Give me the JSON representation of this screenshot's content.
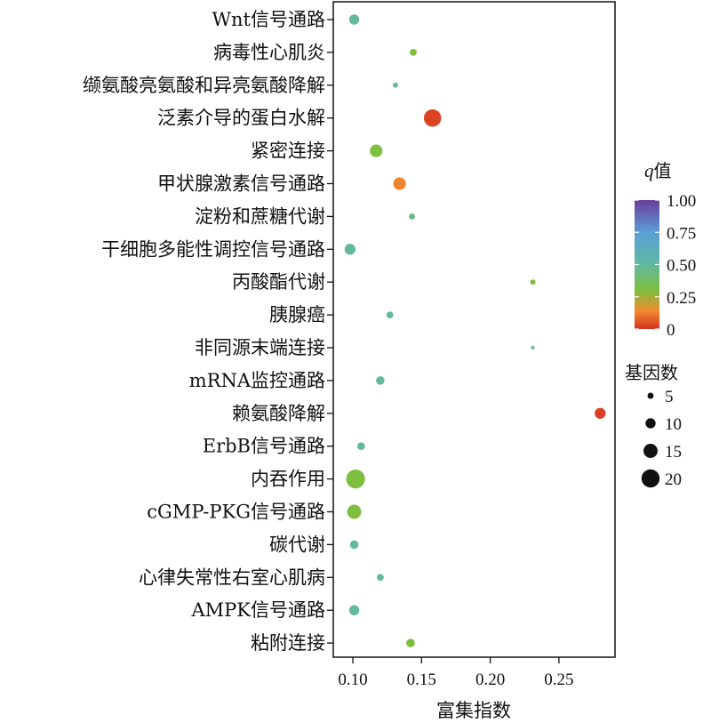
{
  "chart_data": {
    "type": "scatter",
    "xlabel": "富集指数",
    "xlim": [
      0.085,
      0.295
    ],
    "xticks": [
      0.1,
      0.15,
      0.2,
      0.25
    ],
    "xtick_labels": [
      "0.10",
      "0.15",
      "0.20",
      "0.25"
    ],
    "points": [
      {
        "term": "Wnt信号通路",
        "x": 0.101,
        "q": 0.5,
        "genes": 10
      },
      {
        "term": "病毒性心肌炎",
        "x": 0.144,
        "q": 0.3,
        "genes": 6
      },
      {
        "term": "缬氨酸亮氨酸和异亮氨酸降解",
        "x": 0.131,
        "q": 0.5,
        "genes": 4
      },
      {
        "term": "泛素介导的蛋白水解",
        "x": 0.158,
        "q": 0.03,
        "genes": 19
      },
      {
        "term": "紧密连接",
        "x": 0.117,
        "q": 0.3,
        "genes": 13
      },
      {
        "term": "甲状腺激素信号通路",
        "x": 0.134,
        "q": 0.13,
        "genes": 13
      },
      {
        "term": "淀粉和蔗糖代谢",
        "x": 0.143,
        "q": 0.45,
        "genes": 5
      },
      {
        "term": "干细胞多能性调控信号通路",
        "x": 0.098,
        "q": 0.5,
        "genes": 11
      },
      {
        "term": "丙酸酯代谢",
        "x": 0.231,
        "q": 0.3,
        "genes": 4
      },
      {
        "term": "胰腺癌",
        "x": 0.127,
        "q": 0.5,
        "genes": 6
      },
      {
        "term": "非同源末端连接",
        "x": 0.231,
        "q": 0.5,
        "genes": 2
      },
      {
        "term": "mRNA监控通路",
        "x": 0.12,
        "q": 0.5,
        "genes": 8
      },
      {
        "term": "赖氨酸降解",
        "x": 0.28,
        "q": 0.02,
        "genes": 11
      },
      {
        "term": "ErbB信号通路",
        "x": 0.106,
        "q": 0.5,
        "genes": 7
      },
      {
        "term": "内吞作用",
        "x": 0.102,
        "q": 0.3,
        "genes": 21
      },
      {
        "term": "cGMP-PKG信号通路",
        "x": 0.101,
        "q": 0.3,
        "genes": 15
      },
      {
        "term": "碳代谢",
        "x": 0.101,
        "q": 0.5,
        "genes": 8
      },
      {
        "term": "心律失常性右室心肌病",
        "x": 0.12,
        "q": 0.5,
        "genes": 6
      },
      {
        "term": "AMPK信号通路",
        "x": 0.101,
        "q": 0.5,
        "genes": 10
      },
      {
        "term": "粘附连接",
        "x": 0.142,
        "q": 0.3,
        "genes": 8
      }
    ],
    "color_legend": {
      "title_italic": "q",
      "title_rest": "值",
      "ticks": [
        0,
        0.25,
        0.5,
        0.75,
        1.0
      ],
      "tick_labels": [
        "0",
        "0.25",
        "0.50",
        "0.75",
        "1.00"
      ],
      "colors": [
        "#d7301f",
        "#f08a2e",
        "#7fbf3f",
        "#5fb8a8",
        "#5a9fd6",
        "#6a3d9a"
      ]
    },
    "size_legend": {
      "title": "基因数",
      "values": [
        5,
        10,
        15,
        20
      ],
      "labels": [
        "5",
        "10",
        "15",
        "20"
      ]
    },
    "grid": false,
    "legend_position": "right"
  }
}
